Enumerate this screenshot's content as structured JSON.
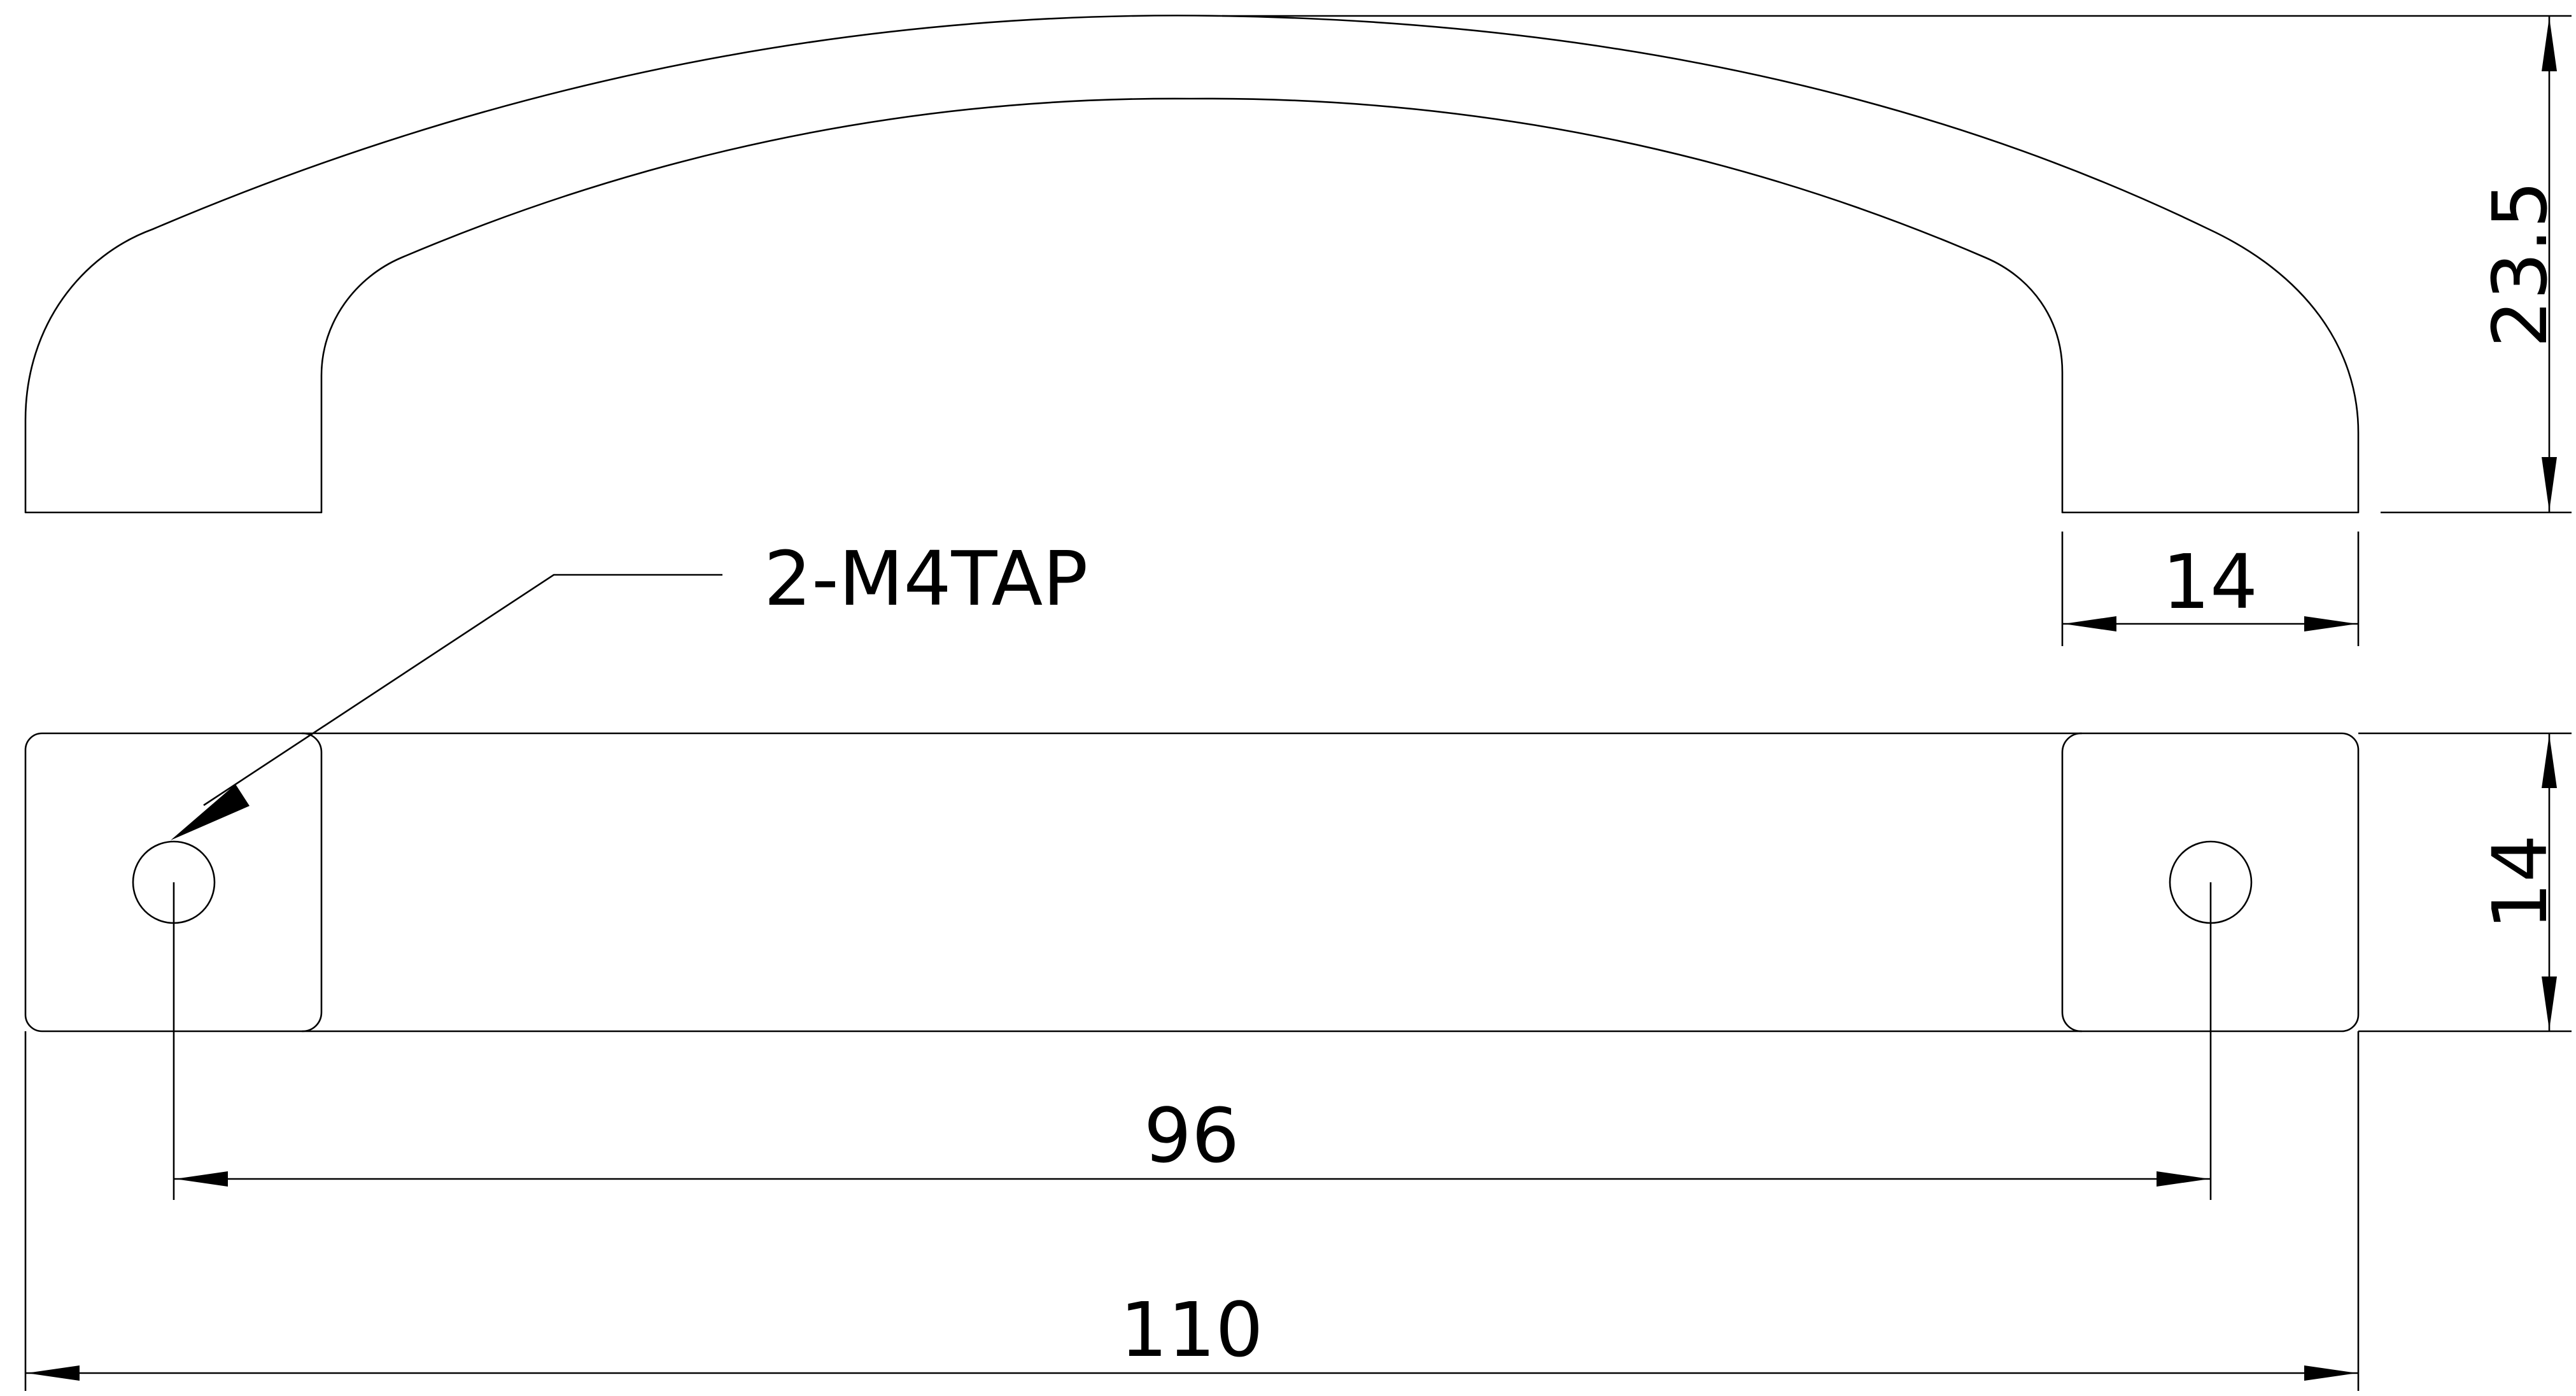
{
  "callout": {
    "text": "2-M4TAP"
  },
  "dimensions": {
    "height": "23.5",
    "foot_width": "14",
    "depth": "14",
    "hole_spacing": "96",
    "overall_length": "110"
  }
}
